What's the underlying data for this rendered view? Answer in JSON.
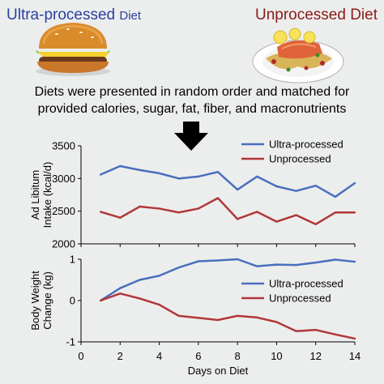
{
  "header": {
    "ultra_title": "Ultra-processed",
    "ultra_title_suffix": "Diet",
    "unprocessed_title": "Unprocessed Diet",
    "caption_line1": "Diets were presented in random order and matched for",
    "caption_line2": "provided calories, sugar, fat, fiber, and macronutrients"
  },
  "colors": {
    "ultra": "#4a6fbf",
    "unprocessed": "#b0383a",
    "ultra_title": "#2b3fa0",
    "unprocessed_title": "#8b1a1a"
  },
  "icons": [
    "burger-icon",
    "salmon-plate-icon",
    "down-arrow-icon"
  ],
  "chart_data": [
    {
      "type": "line",
      "title": "",
      "xlabel": "",
      "ylabel": "Ad Libitum Intake (kcal/d)",
      "x": [
        1,
        2,
        3,
        4,
        5,
        6,
        7,
        8,
        9,
        10,
        11,
        12,
        13,
        14
      ],
      "ylim": [
        2000,
        3500
      ],
      "yticks": [
        2000,
        2500,
        3000,
        3500
      ],
      "series": [
        {
          "name": "Ultra-processed",
          "values": [
            3060,
            3190,
            3130,
            3080,
            3000,
            3030,
            3100,
            2830,
            3030,
            2880,
            2810,
            2890,
            2720,
            2930
          ]
        },
        {
          "name": "Unprocessed",
          "values": [
            2490,
            2400,
            2570,
            2540,
            2480,
            2540,
            2700,
            2380,
            2490,
            2340,
            2440,
            2300,
            2480,
            2480
          ]
        }
      ],
      "legend": "top-right",
      "grid": false
    },
    {
      "type": "line",
      "title": "",
      "xlabel": "Days on Diet",
      "ylabel": "Body Weight Change (kg)",
      "x": [
        1,
        2,
        3,
        4,
        5,
        6,
        7,
        8,
        9,
        10,
        11,
        12,
        13,
        14
      ],
      "xlim": [
        0,
        14
      ],
      "xticks": [
        0,
        2,
        4,
        6,
        8,
        10,
        12,
        14
      ],
      "ylim": [
        -1,
        1
      ],
      "yticks": [
        -1,
        0,
        1
      ],
      "series": [
        {
          "name": "Ultra-processed",
          "values": [
            0,
            0.3,
            0.5,
            0.6,
            0.8,
            0.95,
            0.97,
            1.0,
            0.83,
            0.87,
            0.86,
            0.92,
            0.99,
            0.94
          ]
        },
        {
          "name": "Unprocessed",
          "values": [
            0,
            0.17,
            0.05,
            -0.1,
            -0.37,
            -0.42,
            -0.47,
            -0.37,
            -0.41,
            -0.52,
            -0.74,
            -0.71,
            -0.82,
            -0.92
          ]
        }
      ],
      "legend": "right",
      "grid": false
    }
  ]
}
